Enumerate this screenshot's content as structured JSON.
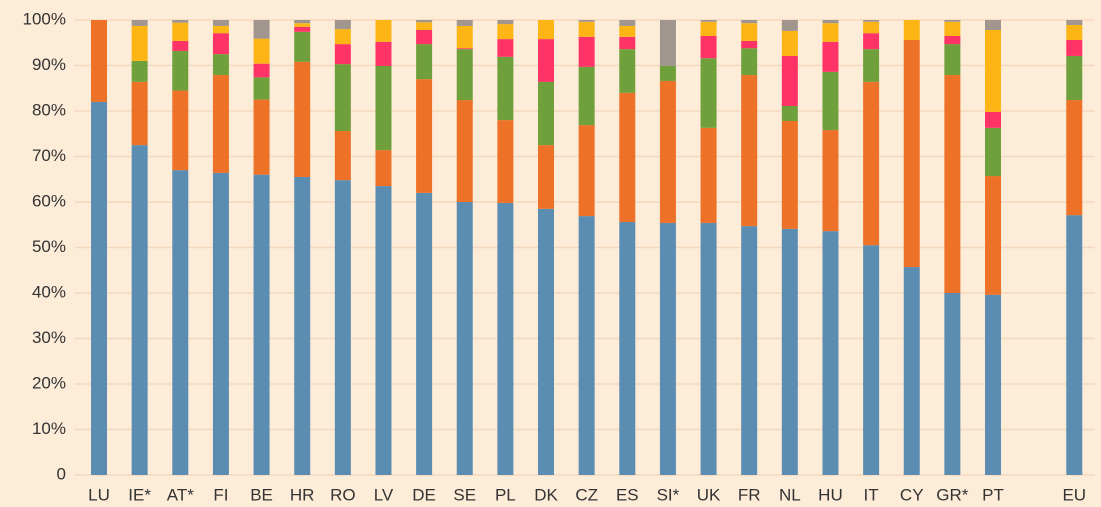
{
  "chart_data": {
    "type": "stacked_bar",
    "categories": [
      "LU",
      "IE*",
      "AT*",
      "FI",
      "BE",
      "HR",
      "RO",
      "LV",
      "DE",
      "SE",
      "PL",
      "DK",
      "CZ",
      "ES",
      "SI*",
      "UK",
      "FR",
      "NL",
      "HU",
      "IT",
      "CY",
      "GR*",
      "PT",
      null,
      "EU"
    ],
    "series": [
      {
        "color": "#5b8db3",
        "values": [
          82,
          72.5,
          67,
          66.4,
          66,
          65.5,
          64.8,
          63.5,
          62,
          60,
          59.8,
          58.5,
          56.9,
          55.6,
          55.4,
          55.4,
          54.7,
          54.1,
          53.6,
          50.5,
          45.7,
          40,
          39.6,
          null,
          57.1
        ]
      },
      {
        "color": "#ee7128",
        "values": [
          18,
          13.9,
          17.5,
          21.5,
          16.5,
          25.3,
          10.8,
          7.9,
          25,
          22.4,
          18.2,
          14,
          20,
          28.4,
          31.2,
          20.9,
          33.2,
          23.7,
          22.2,
          35.9,
          49.9,
          47.9,
          26.1,
          null,
          25.3
        ]
      },
      {
        "color": "#70a03c",
        "values": [
          0,
          4.6,
          8.7,
          4.6,
          4.9,
          6.6,
          14.7,
          18.5,
          7.7,
          11.2,
          13.9,
          13.9,
          12.8,
          9.6,
          3.3,
          15.3,
          5.9,
          3.3,
          12.8,
          7.2,
          0,
          6.8,
          10.6,
          null,
          9.7
        ]
      },
      {
        "color": "#ff3366",
        "values": [
          0,
          0,
          2.2,
          4.6,
          3,
          1.1,
          4.4,
          5.3,
          3.1,
          0.2,
          3.9,
          9.4,
          6.6,
          2.7,
          0,
          4.9,
          1.6,
          11,
          6.6,
          3.5,
          0,
          1.8,
          3.5,
          null,
          3.5
        ]
      },
      {
        "color": "#fdb515",
        "values": [
          0,
          7.7,
          4,
          1.6,
          5.5,
          0.8,
          3.3,
          4.8,
          1.7,
          4.9,
          3.3,
          4.2,
          3.3,
          2.4,
          0,
          3.1,
          3.9,
          5.5,
          4.1,
          2.5,
          4.4,
          3.1,
          18,
          null,
          3.3
        ]
      },
      {
        "color": "#a0968e",
        "values": [
          0,
          1.3,
          0.6,
          1.3,
          4.1,
          0.7,
          2,
          0,
          0.5,
          1.3,
          0.9,
          0,
          0.4,
          1.3,
          10.1,
          0.4,
          0.7,
          2.4,
          0.7,
          0.4,
          0,
          0.4,
          2.2,
          null,
          1.1
        ]
      }
    ],
    "ylim": [
      0,
      100
    ],
    "yticks": [
      0,
      {
        "value": 10,
        "label": "10%"
      },
      {
        "value": 20,
        "label": "20%"
      },
      {
        "value": 30,
        "label": "30%"
      },
      {
        "value": 40,
        "label": "40%"
      },
      {
        "value": 50,
        "label": "50%"
      },
      {
        "value": 60,
        "label": "60%"
      },
      {
        "value": 70,
        "label": "70%"
      },
      {
        "value": 80,
        "label": "80%"
      },
      {
        "value": 90,
        "label": "90%"
      },
      {
        "value": 100,
        "label": "100%"
      }
    ],
    "grid": true
  }
}
